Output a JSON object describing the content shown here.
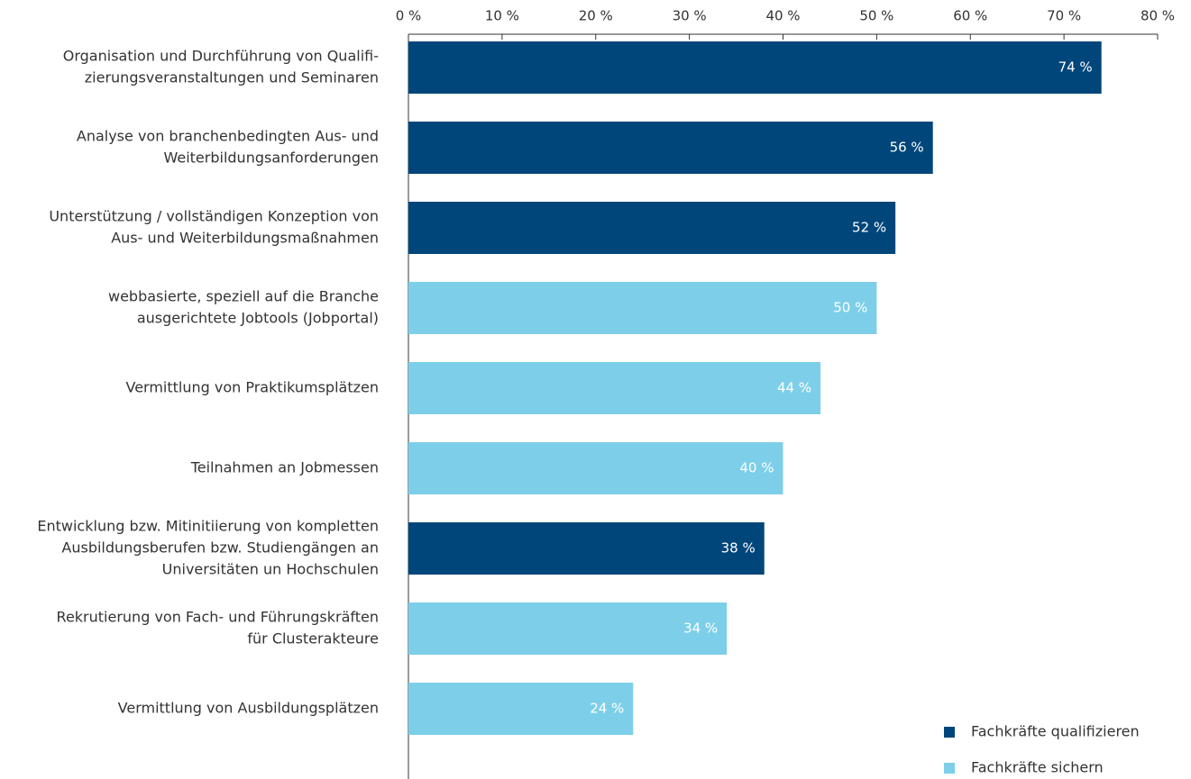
{
  "chart_data": {
    "type": "hbar",
    "categories": [
      [
        "Organisation und Durchführung von Qualifi-",
        "zierungsveranstaltungen und Seminaren"
      ],
      [
        "Analyse von branchenbedingten Aus- und",
        "Weiterbildungsanforderungen"
      ],
      [
        "Unterstützung / vollständigen Konzeption von",
        "Aus- und Weiterbildungsmaßnahmen"
      ],
      [
        "webbasierte, speziell auf die Branche",
        "ausgerichtete Jobtools (Jobportal)"
      ],
      [
        "Vermittlung von Praktikumsplätzen"
      ],
      [
        "Teilnahmen an Jobmessen"
      ],
      [
        "Entwicklung bzw. Mitinitiierung von kompletten",
        "Ausbildungsberufen bzw. Studiengängen an",
        "Universitäten un Hochschulen"
      ],
      [
        "Rekrutierung von Fach- und Führungskräften",
        "für Clusterakteure"
      ],
      [
        "Vermittlung von Ausbildungsplätzen"
      ]
    ],
    "series": [
      {
        "name": "Fachkräfte qualifizieren",
        "color": "#00467a",
        "values": [
          74,
          56,
          52,
          null,
          null,
          null,
          38,
          null,
          null
        ],
        "value_labels": [
          "74 %",
          "56 %",
          "52 %",
          null,
          null,
          null,
          "38 %",
          null,
          null
        ]
      },
      {
        "name": "Fachkräfte sichern",
        "color": "#7dcfe9",
        "values": [
          null,
          null,
          null,
          50,
          44,
          40,
          null,
          34,
          24
        ],
        "value_labels": [
          null,
          null,
          null,
          "50 %",
          "44 %",
          "40 %",
          null,
          "34 %",
          "24 %"
        ]
      }
    ],
    "xlim": [
      0,
      80
    ],
    "xticks": [
      {
        "value": 0,
        "label": "0 %"
      },
      {
        "value": 10,
        "label": "10 %"
      },
      {
        "value": 20,
        "label": "20 %"
      },
      {
        "value": 30,
        "label": "30 %"
      },
      {
        "value": 40,
        "label": "40 %"
      },
      {
        "value": 50,
        "label": "50 %"
      },
      {
        "value": 60,
        "label": "60 %"
      },
      {
        "value": 70,
        "label": "70 %"
      },
      {
        "value": 80,
        "label": "80 %"
      }
    ],
    "legend": "bottom-right"
  }
}
